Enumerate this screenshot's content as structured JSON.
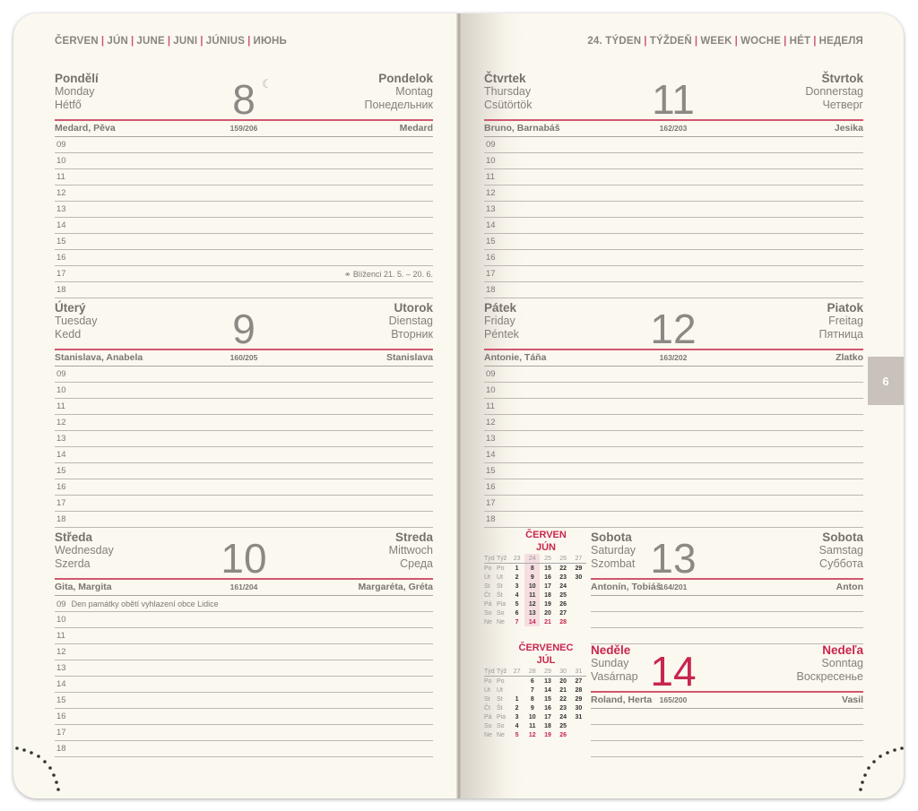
{
  "header_left": [
    "ČERVEN",
    "JÚN",
    "JUNE",
    "JUNI",
    "JÚNIUS",
    "ИЮНЬ"
  ],
  "header_right": [
    "24. TÝDEN",
    "TÝŽDEŇ",
    "WEEK",
    "WOCHE",
    "HÉT",
    "НЕДЕЛЯ"
  ],
  "tab_label": "6",
  "accent": "#d0576f",
  "days": [
    {
      "cs": "Pondělí",
      "en": "Monday",
      "hu": "Hétfő",
      "sk": "Pondelok",
      "de": "Montag",
      "ru": "Понедельник",
      "num": "8",
      "moon": "☾",
      "names_cs": "Medard, Pěva",
      "doy": "159/206",
      "names_sk": "Medard",
      "hours": [
        "09",
        "10",
        "11",
        "12",
        "13",
        "14",
        "15",
        "16",
        "17",
        "18"
      ],
      "notes": {
        "17": "⚭ Blíženci 21. 5. – 20. 6."
      }
    },
    {
      "cs": "Úterý",
      "en": "Tuesday",
      "hu": "Kedd",
      "sk": "Utorok",
      "de": "Dienstag",
      "ru": "Вторник",
      "num": "9",
      "names_cs": "Stanislava, Anabela",
      "doy": "160/205",
      "names_sk": "Stanislava",
      "hours": [
        "09",
        "10",
        "11",
        "12",
        "13",
        "14",
        "15",
        "16",
        "17",
        "18"
      ]
    },
    {
      "cs": "Středa",
      "en": "Wednesday",
      "hu": "Szerda",
      "sk": "Streda",
      "de": "Mittwoch",
      "ru": "Среда",
      "num": "10",
      "names_cs": "Gita, Margita",
      "doy": "161/204",
      "names_sk": "Margaréta, Gréta",
      "hours": [
        "09",
        "10",
        "11",
        "12",
        "13",
        "14",
        "15",
        "16",
        "17",
        "18"
      ],
      "inline": {
        "09": "Den památky obětí vyhlazení obce Lidice"
      }
    },
    {
      "cs": "Čtvrtek",
      "en": "Thursday",
      "hu": "Csütörtök",
      "sk": "Štvrtok",
      "de": "Donnerstag",
      "ru": "Четверг",
      "num": "11",
      "names_cs": "Bruno, Barnabáš",
      "doy": "162/203",
      "names_sk": "Jesika",
      "hours": [
        "09",
        "10",
        "11",
        "12",
        "13",
        "14",
        "15",
        "16",
        "17",
        "18"
      ]
    },
    {
      "cs": "Pátek",
      "en": "Friday",
      "hu": "Péntek",
      "sk": "Piatok",
      "de": "Freitag",
      "ru": "Пятница",
      "num": "12",
      "names_cs": "Antonie, Táňa",
      "doy": "163/202",
      "names_sk": "Zlatko",
      "hours": [
        "09",
        "10",
        "11",
        "12",
        "13",
        "14",
        "15",
        "16",
        "17",
        "18"
      ]
    },
    {
      "cs": "Sobota",
      "en": "Saturday",
      "hu": "Szombat",
      "sk": "Sobota",
      "de": "Samstag",
      "ru": "Суббота",
      "num": "13",
      "names_cs": "Antonín, Tobiáš",
      "doy": "164/201",
      "names_sk": "Anton",
      "hours": [
        "",
        "",
        ""
      ]
    },
    {
      "cs": "Neděle",
      "en": "Sunday",
      "hu": "Vasárnap",
      "sk": "Nedeľa",
      "de": "Sonntag",
      "ru": "Воскресенье",
      "num": "14",
      "names_cs": "Roland, Herta",
      "doy": "165/200",
      "names_sk": "Vasil",
      "hours": [
        "",
        "",
        ""
      ],
      "holiday": true
    }
  ],
  "minicals": [
    {
      "title1": "ČERVEN",
      "title2": "JÚN",
      "head": [
        "Týd",
        "Týž"
      ],
      "weeks": [
        "23",
        "24",
        "25",
        "26",
        "27"
      ],
      "highlight": 1,
      "rows": [
        [
          "Po",
          "Po",
          "1",
          "8",
          "15",
          "22",
          "29"
        ],
        [
          "Út",
          "Ut",
          "2",
          "9",
          "16",
          "23",
          "30"
        ],
        [
          "St",
          "St",
          "3",
          "10",
          "17",
          "24",
          ""
        ],
        [
          "Čt",
          "Št",
          "4",
          "11",
          "18",
          "25",
          ""
        ],
        [
          "Pá",
          "Pia",
          "5",
          "12",
          "19",
          "26",
          ""
        ],
        [
          "So",
          "So",
          "6",
          "13",
          "20",
          "27",
          ""
        ],
        [
          "Ne",
          "Ne",
          "7",
          "14",
          "21",
          "28",
          ""
        ]
      ]
    },
    {
      "title1": "ČERVENEC",
      "title2": "JÚL",
      "head": [
        "Týd",
        "Týž"
      ],
      "weeks": [
        "27",
        "28",
        "29",
        "30",
        "31"
      ],
      "rows": [
        [
          "Po",
          "Po",
          "",
          "6",
          "13",
          "20",
          "27"
        ],
        [
          "Út",
          "Ut",
          "",
          "7",
          "14",
          "21",
          "28"
        ],
        [
          "St",
          "St",
          "1",
          "8",
          "15",
          "22",
          "29"
        ],
        [
          "Čt",
          "Št",
          "2",
          "9",
          "16",
          "23",
          "30"
        ],
        [
          "Pá",
          "Pia",
          "3",
          "10",
          "17",
          "24",
          "31"
        ],
        [
          "So",
          "So",
          "4",
          "11",
          "18",
          "25",
          ""
        ],
        [
          "Ne",
          "Ne",
          "5",
          "12",
          "19",
          "26",
          ""
        ]
      ]
    }
  ]
}
